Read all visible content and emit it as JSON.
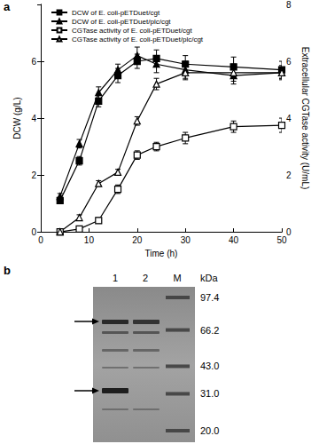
{
  "panel_labels": [
    "a",
    "b"
  ],
  "chart_data": {
    "type": "line",
    "x_label": "Time (h)",
    "y_label": "DCW (g/L)",
    "y2_label": "Extracellular CGTase activity (U/mL)",
    "x": [
      4,
      8,
      12,
      16,
      20,
      24,
      30,
      40,
      50
    ],
    "xlim": [
      0,
      50
    ],
    "xticks": [
      0,
      10,
      20,
      30,
      40,
      50
    ],
    "ylim": [
      0,
      8
    ],
    "yticks": [
      0,
      2,
      4,
      6
    ],
    "y2lim": [
      0,
      8
    ],
    "y2ticks": [
      0,
      2,
      4,
      6,
      8
    ],
    "grid": false,
    "legend": "upper left",
    "series": [
      {
        "name": "DCW of E. coli-pETDuet/cgt",
        "color": "#000000",
        "marker": "square",
        "axis": "y",
        "values": [
          1.1,
          2.5,
          4.6,
          5.5,
          6.0,
          6.1,
          5.9,
          5.8,
          5.7
        ],
        "errors": [
          0.1,
          0.15,
          0.2,
          0.25,
          0.25,
          0.3,
          0.3,
          0.35,
          0.3
        ]
      },
      {
        "name": "DCW of E. coli-pETDuet/plc/cgt",
        "color": "#000000",
        "marker": "triangle",
        "axis": "y",
        "values": [
          1.25,
          3.1,
          4.9,
          5.7,
          6.2,
          5.9,
          5.7,
          5.5,
          5.6
        ],
        "errors": [
          0.1,
          0.15,
          0.2,
          0.2,
          0.3,
          0.3,
          0.3,
          0.3,
          0.25
        ]
      },
      {
        "name": "CGTase activity of E. coli-pETDuet/cgt",
        "color": "#000000",
        "marker": "square-open",
        "axis": "y2",
        "values": [
          0,
          0.1,
          0.4,
          1.5,
          2.7,
          3.0,
          3.3,
          3.7,
          3.75
        ],
        "errors": [
          0.05,
          0.1,
          0.1,
          0.15,
          0.15,
          0.15,
          0.2,
          0.2,
          0.25
        ]
      },
      {
        "name": "CGTase activity of E. coli-pETDuet/plc/cgt",
        "color": "#000000",
        "marker": "triangle-open",
        "axis": "y2",
        "values": [
          0,
          0.5,
          1.7,
          2.1,
          3.9,
          5.2,
          5.6,
          5.6,
          5.6
        ],
        "errors": [
          0.05,
          0.1,
          0.1,
          0.1,
          0.15,
          0.2,
          0.25,
          0.3,
          0.2
        ]
      }
    ]
  },
  "gel": {
    "lanes": [
      "1",
      "2",
      "M"
    ],
    "unit": "kDa",
    "markers": [
      97.4,
      66.2,
      {
        "value": 43,
        "label": "43.0"
      },
      {
        "value": 31,
        "label": "31.0"
      },
      {
        "value": 20,
        "label": "20.0"
      }
    ]
  }
}
